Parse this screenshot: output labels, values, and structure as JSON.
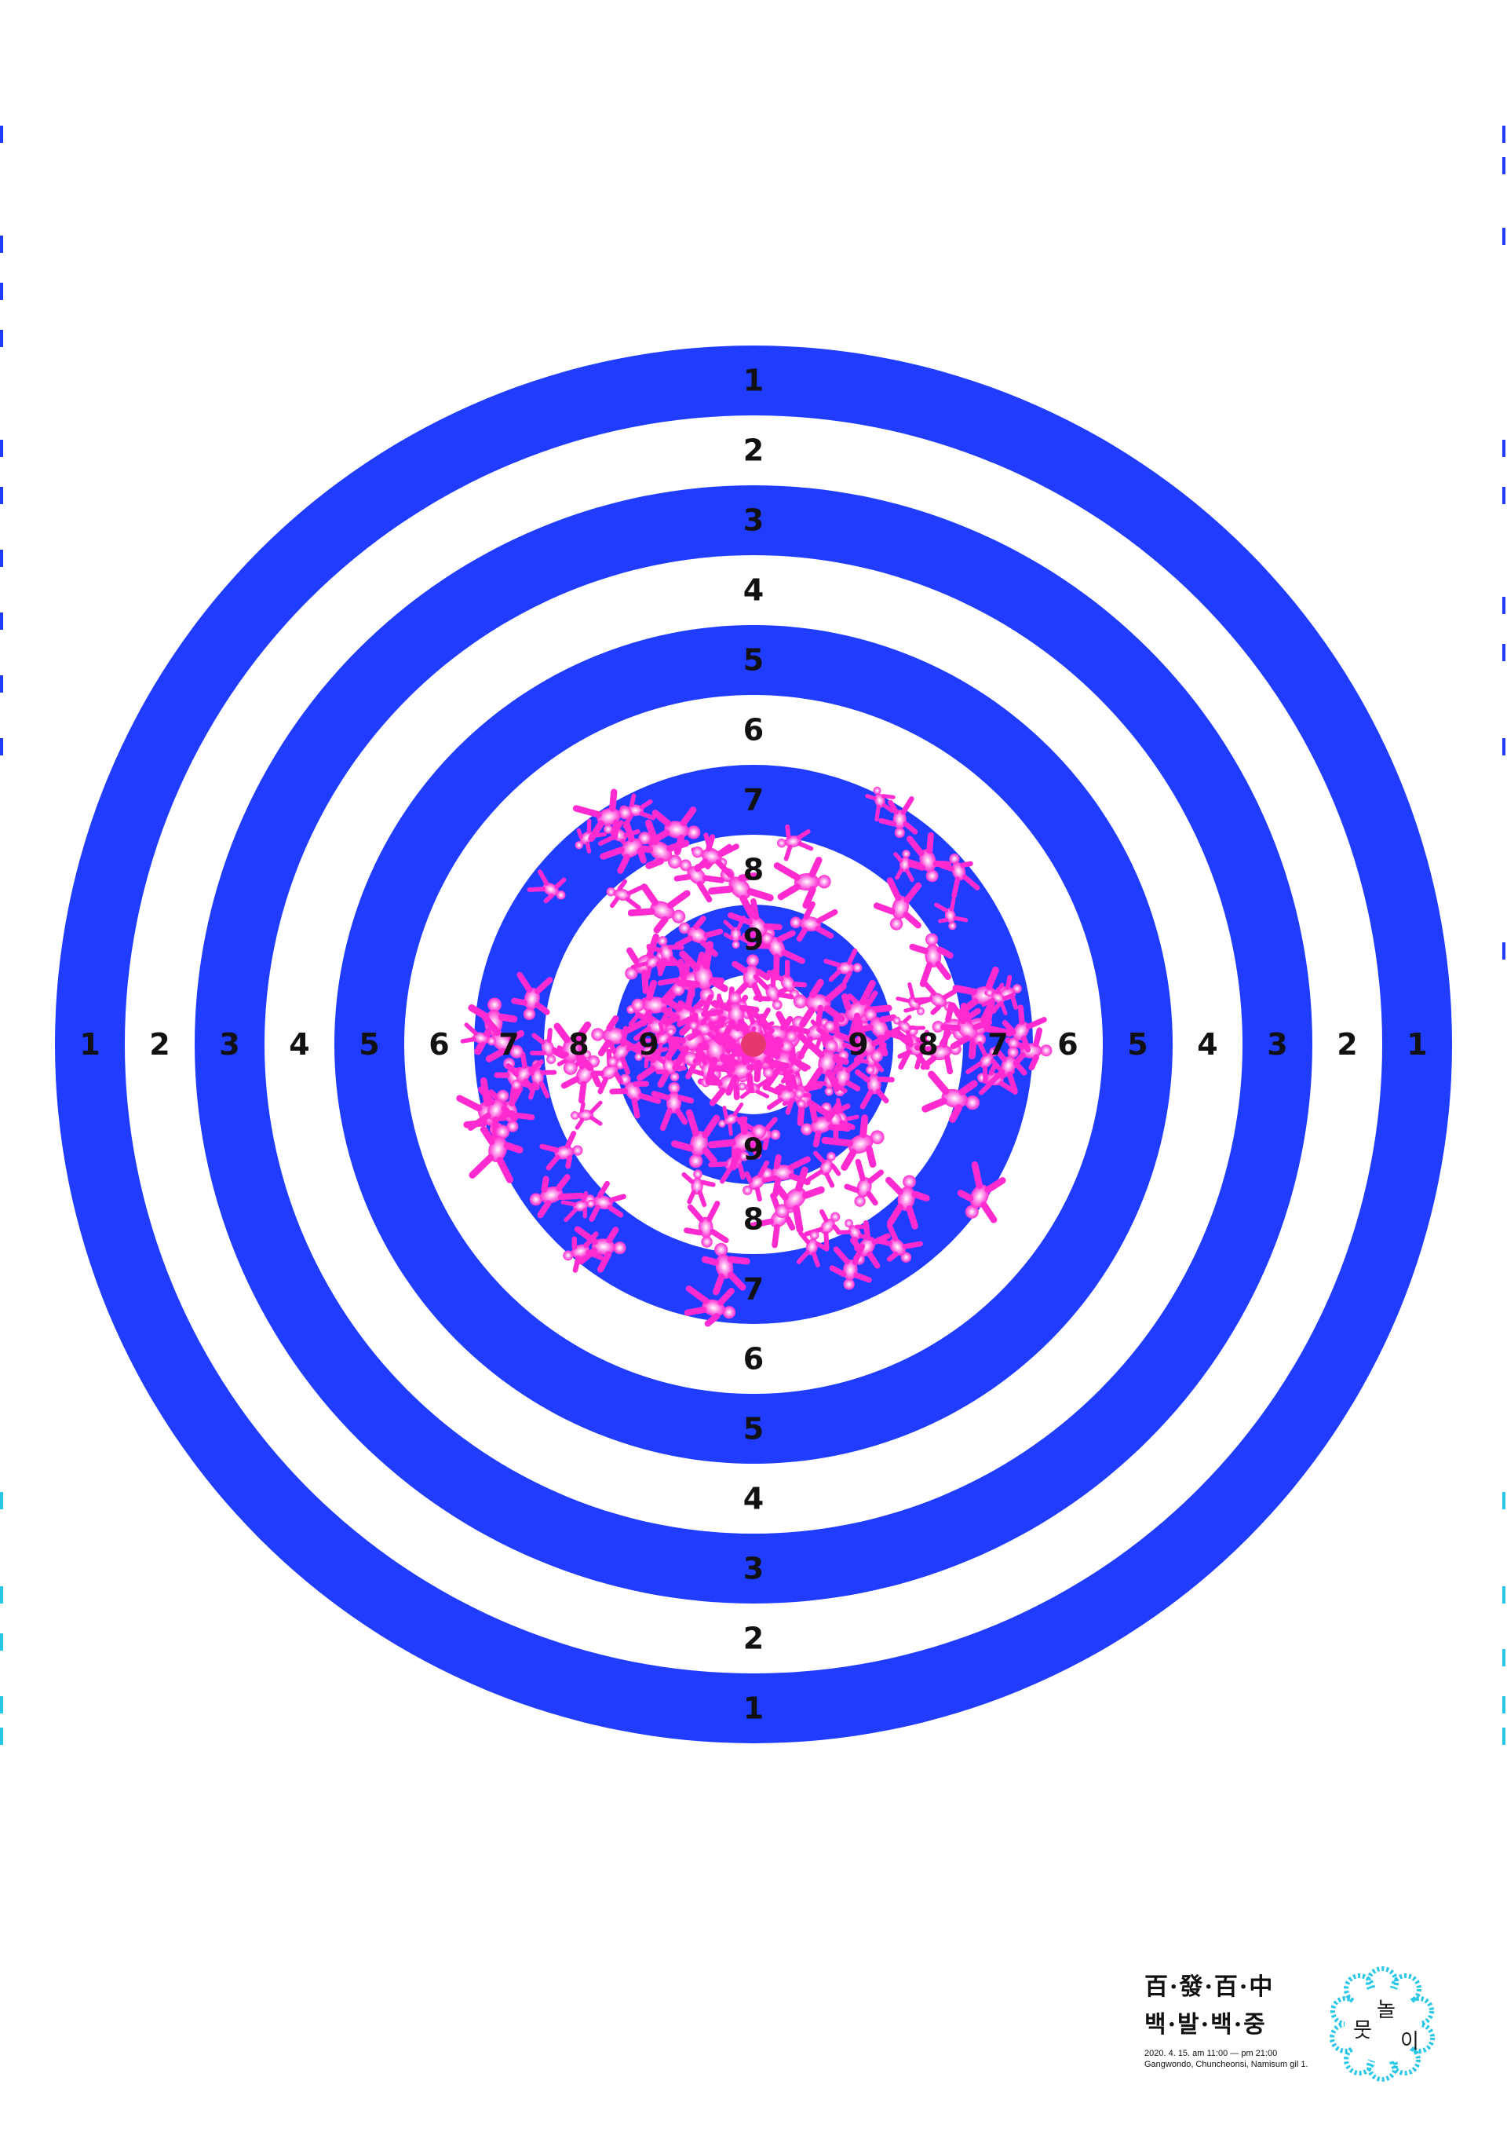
{
  "target": {
    "ring_labels": [
      "1",
      "2",
      "3",
      "4",
      "5",
      "6",
      "7",
      "8",
      "9"
    ],
    "colors": {
      "ring_blue": "#1f3cff",
      "ring_white": "#ffffff",
      "figures": "#ff2bd0",
      "bullseye": "#e4386f"
    }
  },
  "poster": {
    "title_hanja": "百·發·百·中",
    "title_hangul": "백·발·백·중",
    "date_line": "2020. 4. 15. am 11:00 — pm 21:00",
    "place_line": "Gangwondo, Chuncheonsi, Namisum gil 1."
  },
  "logo": {
    "chars": [
      "뭇",
      "놀",
      "이"
    ],
    "color": "#29c7e6"
  }
}
